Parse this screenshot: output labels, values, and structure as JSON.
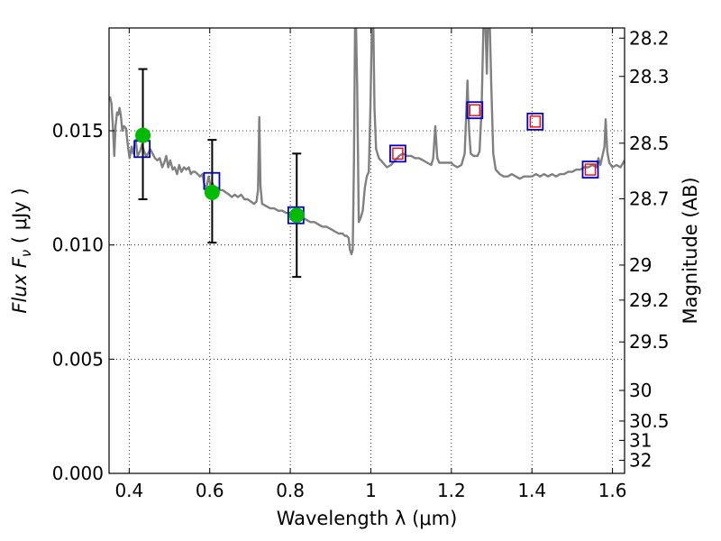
{
  "chart_data": {
    "type": "line",
    "title": "",
    "xlabel": "Wavelength  λ (μm)",
    "ylabel": "Flux  F",
    "ylabel_sub": "ν",
    "ylabel_units": "  ( μJy )",
    "y2label": "Magnitude (AB)",
    "xlim": [
      0.35,
      1.63
    ],
    "ylim": [
      0.0,
      0.0195
    ],
    "grid": true,
    "x_ticks": [
      {
        "value": 0.4,
        "label": "0.4"
      },
      {
        "value": 0.6,
        "label": "0.6"
      },
      {
        "value": 0.8,
        "label": "0.8"
      },
      {
        "value": 1.0,
        "label": "1"
      },
      {
        "value": 1.2,
        "label": "1.2"
      },
      {
        "value": 1.4,
        "label": "1.4"
      },
      {
        "value": 1.6,
        "label": "1.6"
      }
    ],
    "y_ticks": [
      {
        "value": 0.0,
        "label": "0.000"
      },
      {
        "value": 0.005,
        "label": "0.005"
      },
      {
        "value": 0.01,
        "label": "0.010"
      },
      {
        "value": 0.015,
        "label": "0.015"
      }
    ],
    "y2_ticks": [
      {
        "mag": 28.2,
        "label": "28.2"
      },
      {
        "mag": 28.3,
        "label": "28.3"
      },
      {
        "mag": 28.5,
        "label": "28.5"
      },
      {
        "mag": 28.7,
        "label": "28.7"
      },
      {
        "mag": 29.0,
        "label": "29"
      },
      {
        "mag": 29.2,
        "label": "29.2"
      },
      {
        "mag": 29.5,
        "label": "29.5"
      },
      {
        "mag": 30.0,
        "label": "30"
      },
      {
        "mag": 30.5,
        "label": "30.5"
      },
      {
        "mag": 31.0,
        "label": "31"
      },
      {
        "mag": 32.0,
        "label": "32"
      }
    ],
    "model_spectrum": {
      "color": "#808080",
      "points": [
        [
          0.352,
          0.0165
        ],
        [
          0.356,
          0.0162
        ],
        [
          0.36,
          0.015
        ],
        [
          0.363,
          0.0139
        ],
        [
          0.366,
          0.0152
        ],
        [
          0.37,
          0.0158
        ],
        [
          0.373,
          0.0157
        ],
        [
          0.376,
          0.016
        ],
        [
          0.379,
          0.0157
        ],
        [
          0.383,
          0.015
        ],
        [
          0.387,
          0.0152
        ],
        [
          0.392,
          0.0151
        ],
        [
          0.397,
          0.0143
        ],
        [
          0.401,
          0.0138
        ],
        [
          0.406,
          0.0143
        ],
        [
          0.41,
          0.014
        ],
        [
          0.416,
          0.0146
        ],
        [
          0.421,
          0.0139
        ],
        [
          0.427,
          0.0141
        ],
        [
          0.432,
          0.0144
        ],
        [
          0.437,
          0.0141
        ],
        [
          0.442,
          0.0139
        ],
        [
          0.447,
          0.014
        ],
        [
          0.452,
          0.0142
        ],
        [
          0.458,
          0.014
        ],
        [
          0.464,
          0.0138
        ],
        [
          0.47,
          0.0137
        ],
        [
          0.476,
          0.0138
        ],
        [
          0.482,
          0.0134
        ],
        [
          0.487,
          0.0136
        ],
        [
          0.492,
          0.0139
        ],
        [
          0.497,
          0.0134
        ],
        [
          0.502,
          0.0137
        ],
        [
          0.508,
          0.0133
        ],
        [
          0.513,
          0.0134
        ],
        [
          0.519,
          0.0131
        ],
        [
          0.524,
          0.0135
        ],
        [
          0.53,
          0.0132
        ],
        [
          0.536,
          0.0134
        ],
        [
          0.542,
          0.0133
        ],
        [
          0.548,
          0.0134
        ],
        [
          0.553,
          0.0131
        ],
        [
          0.558,
          0.0132
        ],
        [
          0.564,
          0.0132
        ],
        [
          0.57,
          0.0131
        ],
        [
          0.576,
          0.013
        ],
        [
          0.582,
          0.0131
        ],
        [
          0.587,
          0.0126
        ],
        [
          0.592,
          0.0125
        ],
        [
          0.597,
          0.013
        ],
        [
          0.602,
          0.0126
        ],
        [
          0.607,
          0.0127
        ],
        [
          0.613,
          0.0124
        ],
        [
          0.619,
          0.0125
        ],
        [
          0.625,
          0.0124
        ],
        [
          0.632,
          0.0124
        ],
        [
          0.64,
          0.0123
        ],
        [
          0.648,
          0.0122
        ],
        [
          0.655,
          0.0121
        ],
        [
          0.662,
          0.0122
        ],
        [
          0.67,
          0.0121
        ],
        [
          0.678,
          0.0122
        ],
        [
          0.686,
          0.012
        ],
        [
          0.694,
          0.012
        ],
        [
          0.702,
          0.0119
        ],
        [
          0.71,
          0.0118
        ],
        [
          0.716,
          0.0119
        ],
        [
          0.72,
          0.0124
        ],
        [
          0.723,
          0.0156
        ],
        [
          0.726,
          0.0126
        ],
        [
          0.73,
          0.0118
        ],
        [
          0.74,
          0.0117
        ],
        [
          0.75,
          0.0116
        ],
        [
          0.76,
          0.0116
        ],
        [
          0.77,
          0.0115
        ],
        [
          0.78,
          0.0115
        ],
        [
          0.79,
          0.0114
        ],
        [
          0.8,
          0.0114
        ],
        [
          0.81,
          0.0113
        ],
        [
          0.82,
          0.0112
        ],
        [
          0.83,
          0.0112
        ],
        [
          0.84,
          0.0111
        ],
        [
          0.85,
          0.011
        ],
        [
          0.86,
          0.011
        ],
        [
          0.87,
          0.0109
        ],
        [
          0.88,
          0.0108
        ],
        [
          0.89,
          0.0108
        ],
        [
          0.9,
          0.0107
        ],
        [
          0.91,
          0.0106
        ],
        [
          0.92,
          0.0105
        ],
        [
          0.93,
          0.0105
        ],
        [
          0.935,
          0.0104
        ],
        [
          0.94,
          0.0104
        ],
        [
          0.945,
          0.0103
        ],
        [
          0.948,
          0.0098
        ],
        [
          0.952,
          0.0096
        ],
        [
          0.955,
          0.0098
        ],
        [
          0.958,
          0.0135
        ],
        [
          0.961,
          0.0198
        ],
        [
          0.963,
          0.0199
        ],
        [
          0.966,
          0.017
        ],
        [
          0.97,
          0.011
        ],
        [
          0.975,
          0.0112
        ],
        [
          0.98,
          0.0115
        ],
        [
          0.985,
          0.0125
        ],
        [
          0.99,
          0.013
        ],
        [
          0.995,
          0.0132
        ],
        [
          0.999,
          0.016
        ],
        [
          1.003,
          0.0199
        ],
        [
          1.006,
          0.0199
        ],
        [
          1.009,
          0.016
        ],
        [
          1.013,
          0.0142
        ],
        [
          1.02,
          0.0138
        ],
        [
          1.03,
          0.0136
        ],
        [
          1.04,
          0.0134
        ],
        [
          1.05,
          0.0135
        ],
        [
          1.06,
          0.0137
        ],
        [
          1.07,
          0.0139
        ],
        [
          1.08,
          0.014
        ],
        [
          1.09,
          0.0139
        ],
        [
          1.1,
          0.0139
        ],
        [
          1.11,
          0.0138
        ],
        [
          1.12,
          0.0138
        ],
        [
          1.13,
          0.0137
        ],
        [
          1.14,
          0.0136
        ],
        [
          1.15,
          0.0135
        ],
        [
          1.155,
          0.0138
        ],
        [
          1.16,
          0.0152
        ],
        [
          1.165,
          0.0138
        ],
        [
          1.17,
          0.0136
        ],
        [
          1.18,
          0.0136
        ],
        [
          1.19,
          0.0136
        ],
        [
          1.2,
          0.0136
        ],
        [
          1.205,
          0.0135
        ],
        [
          1.215,
          0.0134
        ],
        [
          1.225,
          0.0135
        ],
        [
          1.233,
          0.014
        ],
        [
          1.237,
          0.0158
        ],
        [
          1.24,
          0.0172
        ],
        [
          1.244,
          0.015
        ],
        [
          1.248,
          0.014
        ],
        [
          1.255,
          0.0139
        ],
        [
          1.265,
          0.0139
        ],
        [
          1.27,
          0.0141
        ],
        [
          1.275,
          0.016
        ],
        [
          1.28,
          0.0199
        ],
        [
          1.284,
          0.0199
        ],
        [
          1.288,
          0.0175
        ],
        [
          1.291,
          0.0199
        ],
        [
          1.295,
          0.0199
        ],
        [
          1.299,
          0.017
        ],
        [
          1.304,
          0.014
        ],
        [
          1.31,
          0.0133
        ],
        [
          1.32,
          0.0131
        ],
        [
          1.33,
          0.013
        ],
        [
          1.34,
          0.013
        ],
        [
          1.35,
          0.0131
        ],
        [
          1.36,
          0.013
        ],
        [
          1.37,
          0.0129
        ],
        [
          1.38,
          0.013
        ],
        [
          1.39,
          0.013
        ],
        [
          1.4,
          0.013
        ],
        [
          1.41,
          0.0131
        ],
        [
          1.42,
          0.013
        ],
        [
          1.43,
          0.0131
        ],
        [
          1.44,
          0.013
        ],
        [
          1.45,
          0.0131
        ],
        [
          1.46,
          0.013
        ],
        [
          1.47,
          0.0131
        ],
        [
          1.48,
          0.0131
        ],
        [
          1.49,
          0.0132
        ],
        [
          1.5,
          0.0132
        ],
        [
          1.51,
          0.0133
        ],
        [
          1.52,
          0.0133
        ],
        [
          1.53,
          0.0134
        ],
        [
          1.54,
          0.0134
        ],
        [
          1.55,
          0.0135
        ],
        [
          1.56,
          0.0134
        ],
        [
          1.565,
          0.0138
        ],
        [
          1.57,
          0.0135
        ],
        [
          1.575,
          0.0139
        ],
        [
          1.58,
          0.0143
        ],
        [
          1.583,
          0.0155
        ],
        [
          1.587,
          0.0141
        ],
        [
          1.592,
          0.0136
        ],
        [
          1.6,
          0.0134
        ],
        [
          1.61,
          0.0135
        ],
        [
          1.62,
          0.0134
        ],
        [
          1.63,
          0.0137
        ]
      ]
    },
    "model_photometry": {
      "marker": "square",
      "color": "#0000cc",
      "points": [
        [
          0.432,
          0.0142
        ],
        [
          0.605,
          0.0128
        ],
        [
          0.814,
          0.0113
        ],
        [
          1.067,
          0.014
        ],
        [
          1.258,
          0.0159
        ],
        [
          1.408,
          0.0154
        ],
        [
          1.545,
          0.0133
        ]
      ]
    },
    "upper_limits": {
      "marker": "square",
      "color": "#ff0000",
      "points": [
        [
          1.067,
          0.014
        ],
        [
          1.258,
          0.0159
        ],
        [
          1.408,
          0.0154
        ],
        [
          1.545,
          0.0133
        ]
      ]
    },
    "observed": {
      "marker": "circle",
      "color": "#00bb00",
      "points": [
        {
          "x": 0.434,
          "y": 0.0148,
          "ylo": 0.012,
          "yhi": 0.0177
        },
        {
          "x": 0.606,
          "y": 0.0123,
          "ylo": 0.0101,
          "yhi": 0.0146
        },
        {
          "x": 0.816,
          "y": 0.0113,
          "ylo": 0.0086,
          "yhi": 0.014
        }
      ]
    }
  }
}
